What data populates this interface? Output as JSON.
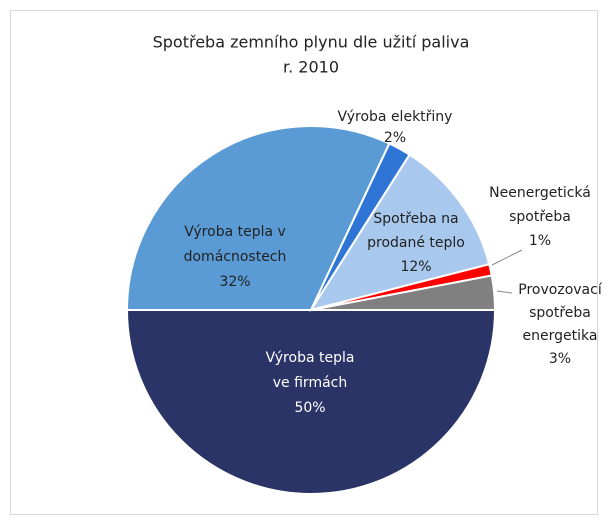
{
  "chart_data": {
    "type": "pie",
    "title": [
      "Spotřeba zemního plynu dle užití paliva",
      "r. 2010"
    ],
    "categories": [
      [
        "Výroba tepla",
        "ve firmách"
      ],
      [
        "Výroba tepla v",
        "domácnostech"
      ],
      [
        "Výroba elektřiny"
      ],
      [
        "Spotřeba na",
        "prodané teplo"
      ],
      [
        "Neenergetická",
        "spotřeba"
      ],
      [
        "Provozovací",
        "spotřeba",
        "energetika"
      ]
    ],
    "values": [
      50,
      32,
      2,
      12,
      1,
      3
    ],
    "value_labels": [
      "50%",
      "32%",
      "2%",
      "12%",
      "1%",
      "3%"
    ],
    "colors": [
      "#2b3467",
      "#5b9bd5",
      "#2e75d6",
      "#a9c8ee",
      "#ff0000",
      "#808080"
    ]
  }
}
